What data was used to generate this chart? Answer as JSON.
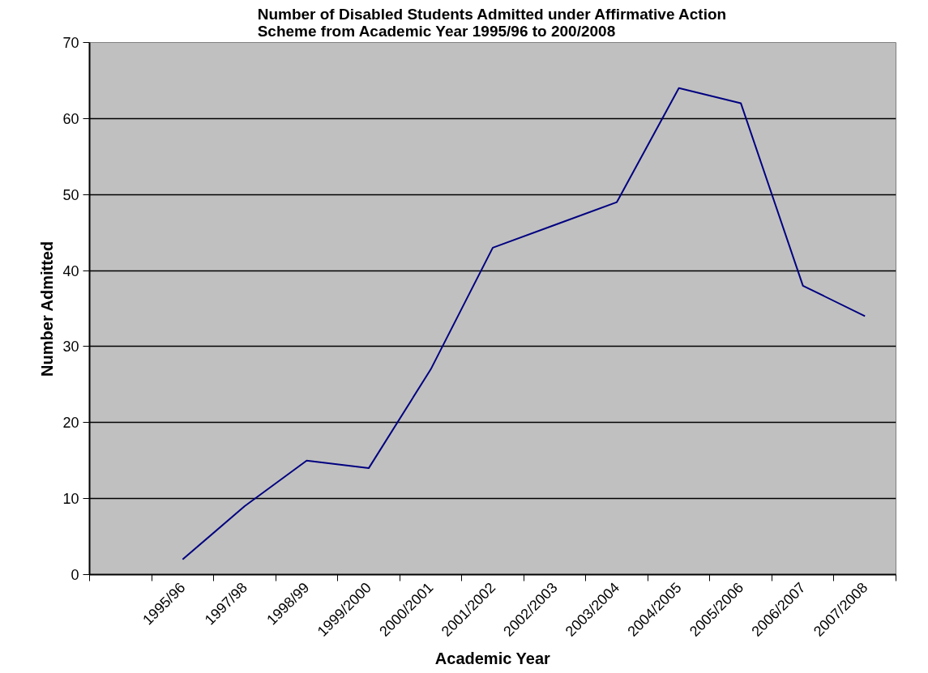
{
  "chart_data": {
    "type": "line",
    "title": "Number of Disabled Students Admitted under Affirmative Action\nScheme from Academic Year 1995/96 to 200/2008",
    "xlabel": "Academic Year",
    "ylabel": "Number Admitted",
    "categories": [
      "1995/96",
      "1997/98",
      "1998/99",
      "1999/2000",
      "2000/2001",
      "2001/2002",
      "2002/2003",
      "2003/2004",
      "2004/2005",
      "2005/2006",
      "2006/2007",
      "2007/2008"
    ],
    "series": [
      {
        "color": "#000080",
        "values": [
          2,
          9,
          15,
          14,
          27,
          43,
          46,
          49,
          64,
          62,
          38,
          34
        ]
      }
    ],
    "ylim": [
      0,
      70
    ],
    "yticks": [
      0,
      10,
      20,
      30,
      40,
      50,
      60,
      70
    ],
    "grid": "y",
    "marker": "none",
    "line_style": "solid"
  }
}
